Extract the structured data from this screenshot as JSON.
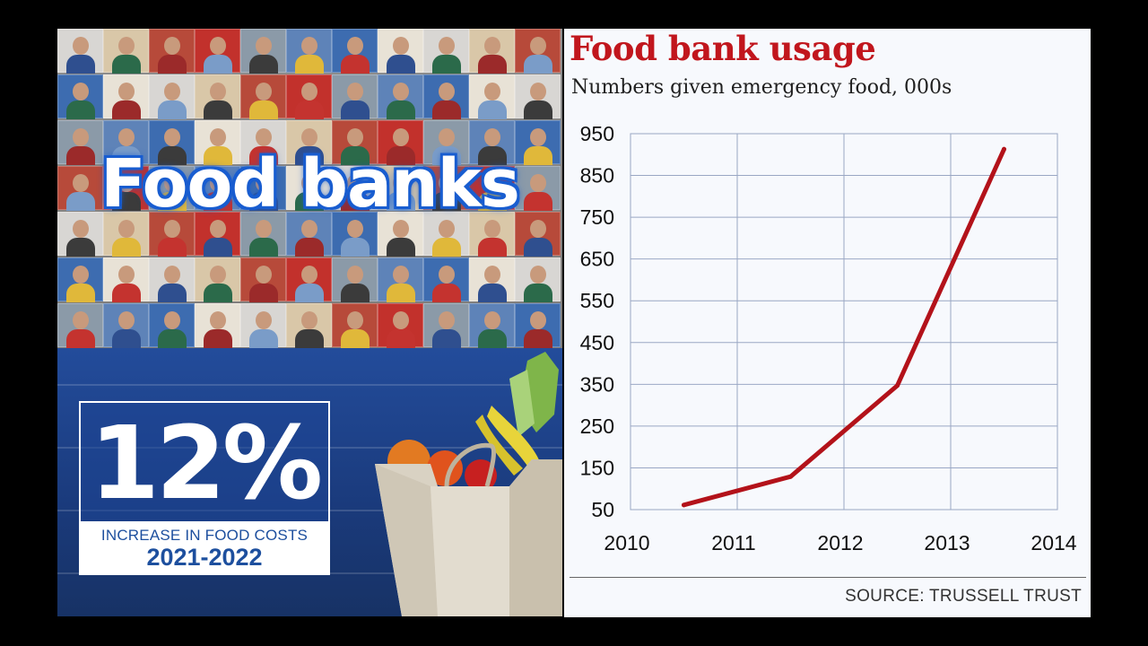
{
  "left_panel": {
    "headline": "Food banks",
    "stat": {
      "value": "12%",
      "caption": "INCREASE IN FOOD COSTS",
      "years": "2021-2022"
    },
    "colors": {
      "brand_blue": "#1d4f9e",
      "band_blue": "#234c9b"
    }
  },
  "chart_data": {
    "type": "line",
    "title": "Food bank usage",
    "subtitle": "Numbers given emergency food, 000s",
    "source": "SOURCE: TRUSSELL TRUST",
    "x_ticks": [
      "2010",
      "2011",
      "2012",
      "2013",
      "2014"
    ],
    "y_ticks": [
      "950",
      "850",
      "750",
      "650",
      "550",
      "450",
      "350",
      "250",
      "150",
      "50"
    ],
    "xlim": [
      2010,
      2014
    ],
    "ylim": [
      50,
      950
    ],
    "grid": true,
    "series": [
      {
        "color": "#b3121a",
        "points": [
          {
            "x": 2010.5,
            "y": 61
          },
          {
            "x": 2011.5,
            "y": 129
          },
          {
            "x": 2012.5,
            "y": 347
          },
          {
            "x": 2013.5,
            "y": 913
          }
        ]
      }
    ]
  }
}
